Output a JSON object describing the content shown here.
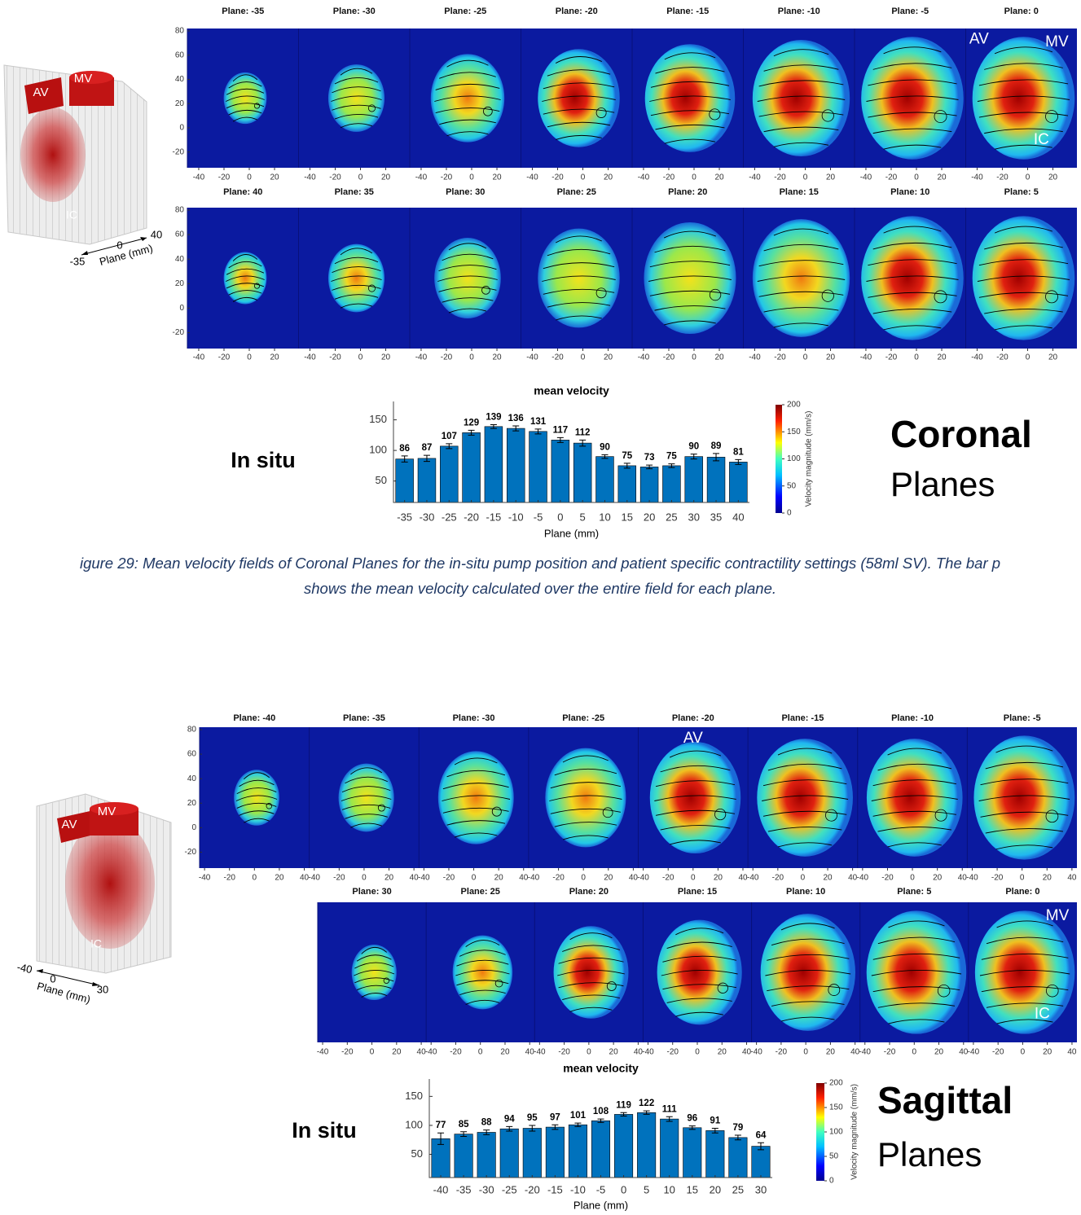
{
  "figures": [
    {
      "panel_rows": [
        {
          "panels": [
            {
              "title": "Plane: -35"
            },
            {
              "title": "Plane: -30"
            },
            {
              "title": "Plane: -25"
            },
            {
              "title": "Plane: -20"
            },
            {
              "title": "Plane: -15"
            },
            {
              "title": "Plane: -10"
            },
            {
              "title": "Plane: -5"
            },
            {
              "title": "Plane: 0",
              "labels": [
                "AV",
                "MV",
                "IC"
              ]
            }
          ]
        },
        {
          "panels": [
            {
              "title": "Plane: 40"
            },
            {
              "title": "Plane: 35"
            },
            {
              "title": "Plane: 30"
            },
            {
              "title": "Plane: 25"
            },
            {
              "title": "Plane: 20"
            },
            {
              "title": "Plane: 15"
            },
            {
              "title": "Plane: 10"
            },
            {
              "title": "Plane: 5"
            }
          ]
        }
      ],
      "panel_xlim": [
        -49,
        39
      ],
      "panel_xticks": [
        -40,
        -20,
        0,
        20
      ],
      "panel_ylim": [
        -33,
        82
      ],
      "panel_yticks": [
        80,
        60,
        40,
        20,
        0,
        -20
      ],
      "model": {
        "labels": [
          "AV",
          "MV",
          "IC"
        ],
        "axis_ticks": [
          "-35",
          "0",
          "40"
        ],
        "axis_label": "Plane (mm)"
      },
      "side_label": "In situ",
      "plane_name": "Coronal",
      "planes_word": "Planes",
      "colorbar": {
        "label": "Velocity magnitude (mm/s)",
        "lim": [
          0,
          200
        ],
        "ticks": [
          0,
          50,
          100,
          150,
          200
        ]
      }
    },
    {
      "panel_rows": [
        {
          "panels": [
            {
              "title": "Plane: -40"
            },
            {
              "title": "Plane: -35"
            },
            {
              "title": "Plane: -30"
            },
            {
              "title": "Plane: -25"
            },
            {
              "title": "Plane: -20",
              "labels": [
                "AV"
              ]
            },
            {
              "title": "Plane: -15"
            },
            {
              "title": "Plane: -10"
            },
            {
              "title": "Plane: -5"
            }
          ]
        },
        {
          "panels": [
            {
              "title": "Plane: 30"
            },
            {
              "title": "Plane: 25"
            },
            {
              "title": "Plane: 20"
            },
            {
              "title": "Plane: 15"
            },
            {
              "title": "Plane: 10"
            },
            {
              "title": "Plane: 5"
            },
            {
              "title": "Plane: 0",
              "labels": [
                "MV",
                "IC"
              ]
            }
          ]
        }
      ],
      "panel_xlim": [
        -44,
        44
      ],
      "panel_xticks": [
        -40,
        -20,
        0,
        20,
        40
      ],
      "panel_ylim": [
        -33,
        82
      ],
      "panel_yticks": [
        80,
        60,
        40,
        20,
        0,
        -20
      ],
      "model": {
        "labels": [
          "AV",
          "MV",
          "IC"
        ],
        "axis_ticks": [
          "-40",
          "0",
          "30"
        ],
        "axis_label": "Plane (mm)"
      },
      "side_label": "In situ",
      "plane_name": "Sagittal",
      "planes_word": "Planes",
      "colorbar": {
        "label": "Velocity magnitude (mm/s)",
        "lim": [
          0,
          200
        ],
        "ticks": [
          0,
          50,
          100,
          150,
          200
        ]
      }
    }
  ],
  "caption": [
    "igure 29: Mean velocity fields of Coronal Planes for the in-situ pump position and patient specific contractility settings (58ml SV). The bar p",
    "shows the mean velocity calculated over the entire field for each plane."
  ],
  "chart_data": [
    {
      "type": "bar",
      "title": "mean velocity",
      "x_label": "Plane (mm)",
      "categories": [
        "-35",
        "-30",
        "-25",
        "-20",
        "-15",
        "-10",
        "-5",
        "0",
        "5",
        "10",
        "15",
        "20",
        "25",
        "30",
        "35",
        "40"
      ],
      "values": [
        86,
        87,
        107,
        129,
        139,
        136,
        131,
        117,
        112,
        90,
        75,
        73,
        75,
        90,
        89,
        81
      ],
      "errors": [
        5,
        5,
        4,
        4,
        3,
        4,
        4,
        4,
        5,
        3,
        4,
        3,
        3,
        4,
        6,
        4
      ],
      "color": "#0072bd",
      "ylim": [
        15,
        180
      ],
      "yticks": [
        50,
        100,
        150
      ]
    },
    {
      "type": "bar",
      "title": "mean velocity",
      "x_label": "Plane (mm)",
      "categories": [
        "-40",
        "-35",
        "-30",
        "-25",
        "-20",
        "-15",
        "-10",
        "-5",
        "0",
        "5",
        "10",
        "15",
        "20",
        "25",
        "30"
      ],
      "values": [
        77,
        85,
        88,
        94,
        95,
        97,
        101,
        108,
        119,
        122,
        111,
        96,
        91,
        79,
        64
      ],
      "errors": [
        10,
        4,
        4,
        4,
        5,
        4,
        3,
        3,
        3,
        3,
        4,
        3,
        4,
        4,
        6
      ],
      "color": "#0072bd",
      "ylim": [
        10,
        180
      ],
      "yticks": [
        50,
        100,
        150
      ]
    }
  ]
}
